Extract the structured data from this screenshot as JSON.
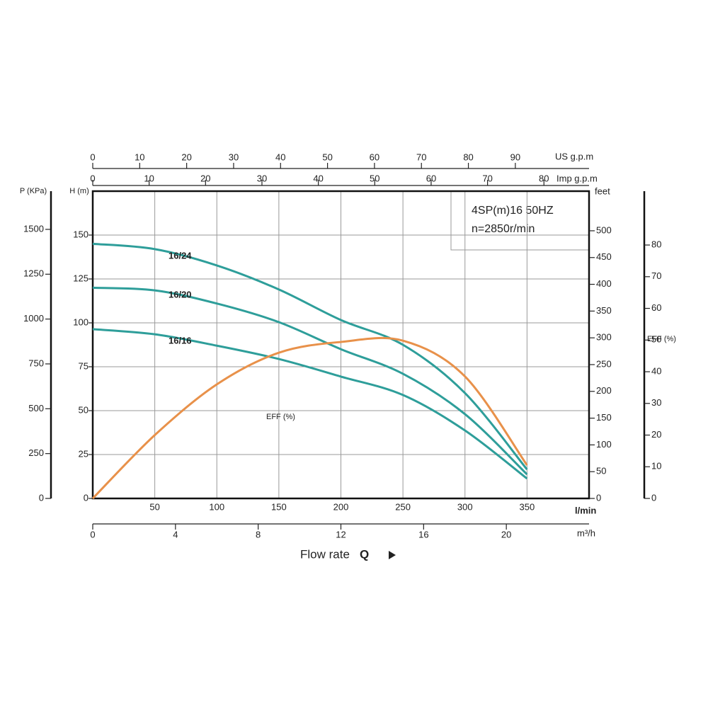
{
  "chart_data": {
    "type": "line",
    "title": "4SP(m)16  50HZ",
    "subtitle": "n=2850r/min",
    "x": [
      0,
      50,
      100,
      150,
      200,
      250,
      300,
      350
    ],
    "xlim": [
      0,
      400
    ],
    "xticks": [
      50,
      100,
      150,
      200,
      250,
      300,
      350
    ],
    "xlabel": "l/min",
    "xlabel_main": "Flow rate",
    "xlabel_symbol": "Q",
    "ylabel": "H (m)",
    "ylim": [
      0,
      175
    ],
    "yticks": [
      0,
      25,
      50,
      75,
      100,
      125,
      150
    ],
    "grid": true,
    "series": [
      {
        "name": "16/24",
        "color": "#2e9e9a",
        "values": [
          145,
          142,
          132.7,
          119,
          101.6,
          87.5,
          60,
          16.5
        ]
      },
      {
        "name": "16/20",
        "color": "#2e9e9a",
        "values": [
          120,
          118.5,
          111,
          100.4,
          85,
          71,
          48,
          13.7
        ]
      },
      {
        "name": "16/16",
        "color": "#2e9e9a",
        "values": [
          96.4,
          93.5,
          87,
          79.4,
          69.4,
          58.9,
          38.7,
          11.3
        ]
      },
      {
        "name": "EFF (%)",
        "color": "#e8914a",
        "axis": "eff",
        "values": [
          0,
          20,
          36,
          46,
          49.4,
          49.8,
          38.5,
          10.5
        ]
      }
    ],
    "p_axis": {
      "label": "P (KPa)",
      "lim": [
        0,
        1713
      ],
      "ticks": [
        0,
        250,
        500,
        750,
        1000,
        1250,
        1500
      ]
    },
    "feet_axis": {
      "label": "feet",
      "lim": [
        0,
        574
      ],
      "ticks": [
        0,
        50,
        100,
        150,
        200,
        250,
        300,
        350,
        400,
        450,
        500
      ]
    },
    "eff_axis": {
      "label": "EFF (%)",
      "lim": [
        0,
        97
      ],
      "ticks": [
        0,
        10,
        20,
        30,
        40,
        50,
        60,
        70,
        80
      ]
    },
    "us_axis": {
      "label": "US g.p.m",
      "lim": [
        0,
        105.7
      ],
      "ticks": [
        0,
        10,
        20,
        30,
        40,
        50,
        60,
        70,
        80,
        90
      ]
    },
    "imp_axis": {
      "label": "Imp g.p.m",
      "lim": [
        0,
        88
      ],
      "ticks": [
        0,
        10,
        20,
        30,
        40,
        50,
        60,
        70,
        80
      ]
    },
    "m3h_axis": {
      "label": "m³/h",
      "lim": [
        0,
        24
      ],
      "ticks": [
        0,
        4,
        8,
        12,
        16,
        20
      ]
    }
  }
}
